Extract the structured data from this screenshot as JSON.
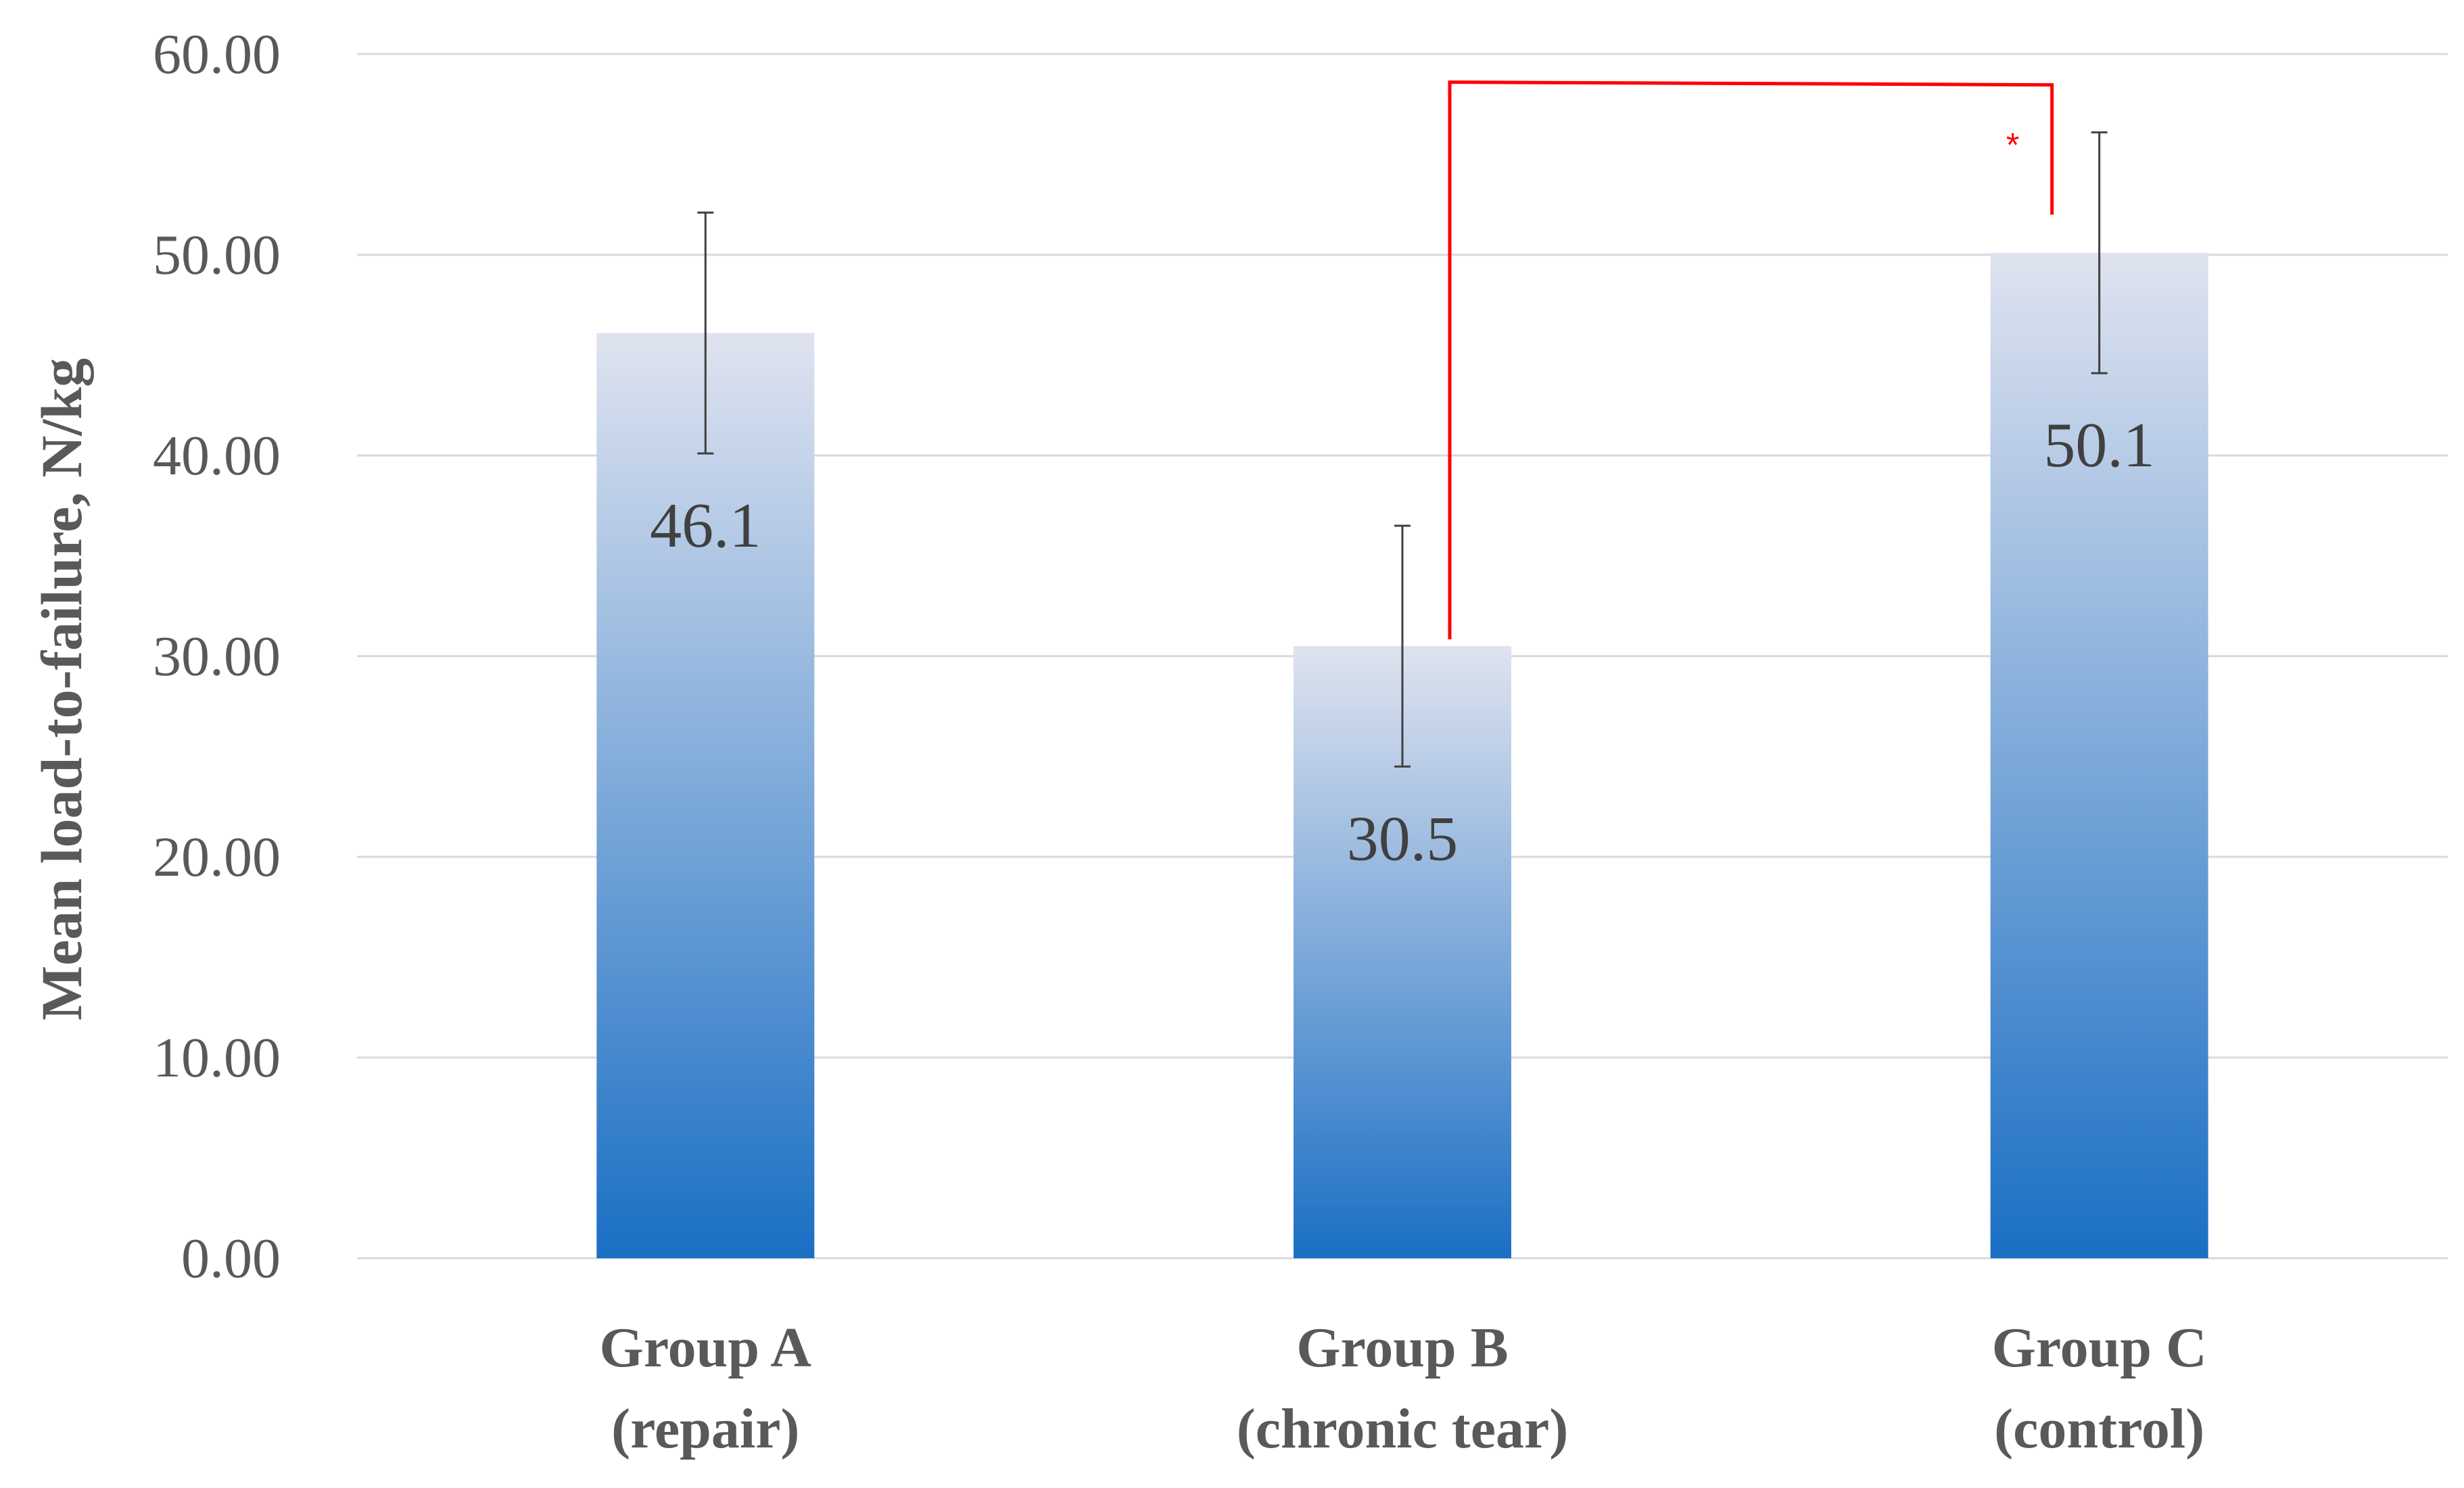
{
  "chart_data": {
    "type": "bar",
    "title": "",
    "xlabel": "",
    "ylabel": "Mean load-to-failure, N/kg",
    "ylim": [
      0,
      60
    ],
    "yticks": [
      "0.00",
      "10.00",
      "20.00",
      "30.00",
      "40.00",
      "50.00",
      "60.00"
    ],
    "categories": [
      [
        "Group A",
        "(repair)"
      ],
      [
        "Group B",
        "(chronic tear)"
      ],
      [
        "Group C",
        "(control)"
      ]
    ],
    "values": [
      46.1,
      30.5,
      50.1
    ],
    "data_labels": [
      "46.1",
      "30.5",
      "50.1"
    ],
    "error_bars": [
      6.0,
      6.0,
      6.0
    ],
    "grid": true,
    "bar_gradient": {
      "top": "#dfe3ef",
      "bottom": "#1a6fc4"
    },
    "significance": {
      "from": 1,
      "to": 2,
      "bracket_y": 58.6,
      "label": "*",
      "color": "#ff0000"
    }
  }
}
